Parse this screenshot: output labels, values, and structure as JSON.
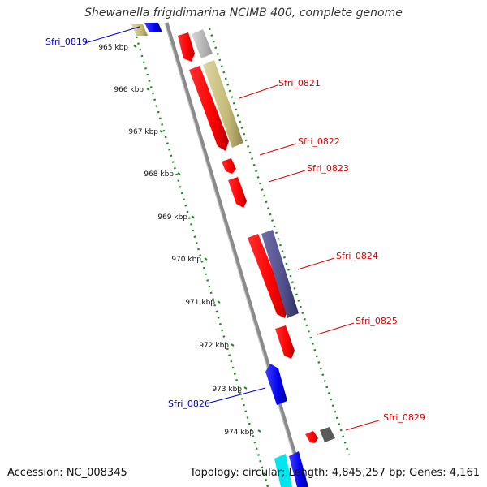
{
  "title": "Shewanella frigidimarina NCIMB 400, complete genome",
  "footer": {
    "accession": "Accession: NC_008345",
    "summary": "Topology: circular; Length: 4,845,257 bp; Genes: 4,161"
  },
  "ruler": {
    "ticks": [
      "965 kbp",
      "966 kbp",
      "967 kbp",
      "968 kbp",
      "969 kbp",
      "970 kbp",
      "971 kbp",
      "972 kbp",
      "973 kbp",
      "974 kbp"
    ]
  },
  "gene_labels": [
    {
      "name": "Sfri_0819",
      "color": "#0000cc"
    },
    {
      "name": "Sfri_0821",
      "color": "#dd0000"
    },
    {
      "name": "Sfri_0822",
      "color": "#dd0000"
    },
    {
      "name": "Sfri_0823",
      "color": "#dd0000"
    },
    {
      "name": "Sfri_0824",
      "color": "#dd0000"
    },
    {
      "name": "Sfri_0825",
      "color": "#dd0000"
    },
    {
      "name": "Sfri_0826",
      "color": "#0000cc"
    },
    {
      "name": "Sfri_0829",
      "color": "#dd0000"
    }
  ],
  "colors": {
    "backbone": "#8a8a8a",
    "ruler_dots": "#228822",
    "cds_red": "#ff0000",
    "cds_blue": "#0000ee",
    "rna_tan": "#c8bf80",
    "rna_purple": "#50508a",
    "pseudo_grey": "#bdbdbd",
    "dark_grey": "#555555",
    "cyan": "#00e5ee"
  }
}
